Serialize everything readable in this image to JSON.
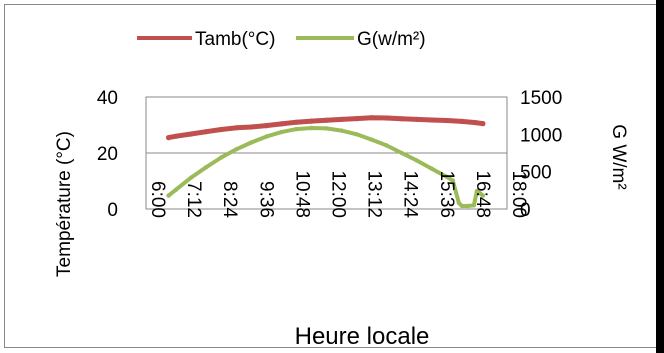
{
  "chart_data": {
    "type": "line",
    "xlabel": "Heure locale",
    "ylabel_left": "Température (°C)",
    "ylabel_right": "G W/m²",
    "x_ticks": [
      "6:00",
      "7:12",
      "8:24",
      "9:36",
      "10:48",
      "12:00",
      "13:12",
      "14:24",
      "15:36",
      "16:48",
      "18:00"
    ],
    "x_range_hours": [
      6,
      18
    ],
    "y_left": {
      "ticks": [
        "0",
        "20",
        "40"
      ],
      "range": [
        0,
        40
      ]
    },
    "y_right": {
      "ticks": [
        "0",
        "500",
        "1000",
        "1500"
      ],
      "range": [
        0,
        1500
      ]
    },
    "grid": true,
    "legend": "top",
    "series": [
      {
        "name": "Tamb(°C)",
        "axis": "left",
        "color": "#c0504d",
        "x": [
          6.75,
          7.0,
          7.5,
          8.0,
          8.5,
          9.0,
          9.5,
          10.0,
          10.5,
          11.0,
          11.5,
          12.0,
          12.5,
          13.0,
          13.5,
          14.0,
          14.5,
          15.0,
          15.5,
          16.0,
          16.5,
          17.0,
          17.2
        ],
        "y": [
          25.5,
          26.0,
          26.8,
          27.6,
          28.4,
          29.0,
          29.3,
          29.8,
          30.4,
          31.0,
          31.4,
          31.7,
          32.0,
          32.3,
          32.6,
          32.5,
          32.2,
          32.0,
          31.8,
          31.6,
          31.3,
          30.8,
          30.5
        ]
      },
      {
        "name": "G(w/m²)",
        "axis": "right",
        "color": "#9bbb59",
        "x": [
          6.75,
          7.0,
          7.5,
          8.0,
          8.5,
          9.0,
          9.5,
          10.0,
          10.5,
          11.0,
          11.5,
          12.0,
          12.5,
          13.0,
          13.5,
          14.0,
          14.5,
          15.0,
          15.5,
          16.0,
          16.2,
          16.4,
          16.5,
          16.7,
          16.9,
          17.0,
          17.1,
          17.2
        ],
        "y": [
          180,
          260,
          420,
          560,
          690,
          800,
          890,
          970,
          1030,
          1070,
          1085,
          1080,
          1050,
          1000,
          930,
          850,
          750,
          650,
          540,
          430,
          380,
          80,
          40,
          40,
          50,
          240,
          210,
          180
        ]
      }
    ]
  }
}
